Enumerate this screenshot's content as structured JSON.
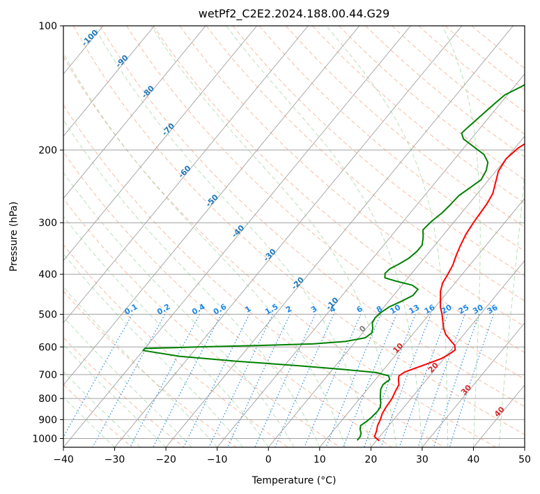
{
  "chart_data": {
    "type": "line",
    "title": "wetPf2_C2E2.2024.188.00.44.G29",
    "xlabel": "Temperature (°C)",
    "ylabel": "Pressure (hPa)",
    "xlim": [
      -40,
      50
    ],
    "ylim": [
      1050,
      100
    ],
    "y_scale": "log",
    "x_ticks": [
      -40,
      -30,
      -20,
      -10,
      0,
      10,
      20,
      30,
      40,
      50
    ],
    "y_ticks": [
      100,
      200,
      300,
      400,
      500,
      600,
      700,
      800,
      900,
      1000
    ],
    "grid": true,
    "colors": {
      "temperature": "#ff0000",
      "dewpoint": "#008000",
      "isotherm": "#a0a0a0",
      "dry_adiabat": "#f4a582",
      "moist_adiabat": "#a6d8a6",
      "mixing_ratio": "#1e88e5",
      "moist_label": "#d62728",
      "dry_label": "#1f77b4"
    },
    "series": [
      {
        "type": "temperature",
        "color": "#ff0000",
        "points": [
          [
            20.6,
            1013
          ],
          [
            19.0,
            990
          ],
          [
            18.5,
            960
          ],
          [
            17.8,
            930
          ],
          [
            17.4,
            900
          ],
          [
            16.8,
            870
          ],
          [
            16.5,
            840
          ],
          [
            16.3,
            800
          ],
          [
            15.8,
            770
          ],
          [
            15.4,
            740
          ],
          [
            14.5,
            720
          ],
          [
            14.0,
            705
          ],
          [
            14.5,
            690
          ],
          [
            16.5,
            670
          ],
          [
            18.0,
            655
          ],
          [
            19.5,
            640
          ],
          [
            20.3,
            625
          ],
          [
            20.8,
            610
          ],
          [
            20.0,
            595
          ],
          [
            18.5,
            580
          ],
          [
            16.5,
            560
          ],
          [
            15.0,
            540
          ],
          [
            13.8,
            520
          ],
          [
            12.5,
            500
          ],
          [
            11.0,
            480
          ],
          [
            9.8,
            460
          ],
          [
            8.5,
            440
          ],
          [
            7.6,
            420
          ],
          [
            7.2,
            400
          ],
          [
            6.7,
            380
          ],
          [
            5.8,
            360
          ],
          [
            5.0,
            340
          ],
          [
            4.3,
            320
          ],
          [
            3.9,
            300
          ],
          [
            3.7,
            285
          ],
          [
            3.5,
            270
          ],
          [
            3.0,
            255
          ],
          [
            1.8,
            240
          ],
          [
            0.5,
            225
          ],
          [
            0.0,
            210
          ],
          [
            0.6,
            198
          ],
          [
            2.3,
            186
          ],
          [
            4.5,
            172
          ],
          [
            6.2,
            160
          ],
          [
            7.2,
            150
          ],
          [
            9.0,
            140
          ],
          [
            9.5,
            130
          ],
          [
            9.5,
            120
          ],
          [
            9.3,
            112
          ],
          [
            10.5,
            105
          ],
          [
            11.5,
            100
          ]
        ]
      },
      {
        "type": "dewpoint",
        "color": "#008000",
        "points": [
          [
            16.2,
            1010
          ],
          [
            16.2,
            990
          ],
          [
            15.8,
            970
          ],
          [
            15.0,
            950
          ],
          [
            14.5,
            930
          ],
          [
            15.0,
            910
          ],
          [
            15.3,
            890
          ],
          [
            15.5,
            860
          ],
          [
            15.4,
            840
          ],
          [
            14.8,
            820
          ],
          [
            14.0,
            800
          ],
          [
            13.3,
            780
          ],
          [
            12.6,
            760
          ],
          [
            12.3,
            740
          ],
          [
            12.8,
            720
          ],
          [
            12.0,
            705
          ],
          [
            9.0,
            692
          ],
          [
            2.0,
            680
          ],
          [
            -8.0,
            665
          ],
          [
            -20.0,
            650
          ],
          [
            -32.0,
            632
          ],
          [
            -40.0,
            612
          ],
          [
            -40.0,
            605
          ],
          [
            -30.0,
            600
          ],
          [
            -18.0,
            595
          ],
          [
            -8.0,
            590
          ],
          [
            -2.0,
            582
          ],
          [
            1.3,
            570
          ],
          [
            1.8,
            555
          ],
          [
            1.2,
            540
          ],
          [
            0.3,
            525
          ],
          [
            0.0,
            510
          ],
          [
            0.3,
            495
          ],
          [
            1.0,
            480
          ],
          [
            2.5,
            465
          ],
          [
            3.8,
            450
          ],
          [
            3.8,
            435
          ],
          [
            2.0,
            425
          ],
          [
            -2.0,
            415
          ],
          [
            -4.5,
            408
          ],
          [
            -5.2,
            398
          ],
          [
            -5.0,
            388
          ],
          [
            -4.0,
            378
          ],
          [
            -3.0,
            366
          ],
          [
            -2.5,
            352
          ],
          [
            -2.5,
            340
          ],
          [
            -3.5,
            326
          ],
          [
            -4.8,
            312
          ],
          [
            -4.5,
            298
          ],
          [
            -3.8,
            284
          ],
          [
            -3.5,
            272
          ],
          [
            -3.3,
            258
          ],
          [
            -2.3,
            246
          ],
          [
            -1.5,
            236
          ],
          [
            -2.0,
            224
          ],
          [
            -3.0,
            214
          ],
          [
            -5.0,
            205
          ],
          [
            -8.0,
            197
          ],
          [
            -11.5,
            188
          ],
          [
            -12.8,
            182
          ],
          [
            -12.5,
            176
          ],
          [
            -12.0,
            168
          ],
          [
            -11.5,
            160
          ],
          [
            -11.0,
            153
          ],
          [
            -10.5,
            147
          ],
          [
            -8.5,
            140
          ],
          [
            -6.5,
            132
          ],
          [
            -4.5,
            124
          ],
          [
            -3.0,
            117
          ],
          [
            -1.5,
            110
          ],
          [
            0.0,
            104
          ],
          [
            1.0,
            100
          ]
        ]
      }
    ],
    "mixing_ratio_labels": [
      "0.1",
      "0.2",
      "0.4",
      "0.6",
      "1",
      "1.5",
      "2",
      "3",
      "4",
      "6",
      "8",
      "10",
      "13",
      "16",
      "20",
      "25",
      "30",
      "36"
    ],
    "moist_adiabat_labels": [
      "0",
      "10",
      "20",
      "30",
      "40"
    ],
    "dry_adiabat_labels": [
      "-100",
      "-90",
      "-80",
      "-70",
      "-60",
      "-50",
      "-40",
      "-30",
      "-20",
      "-10"
    ]
  }
}
